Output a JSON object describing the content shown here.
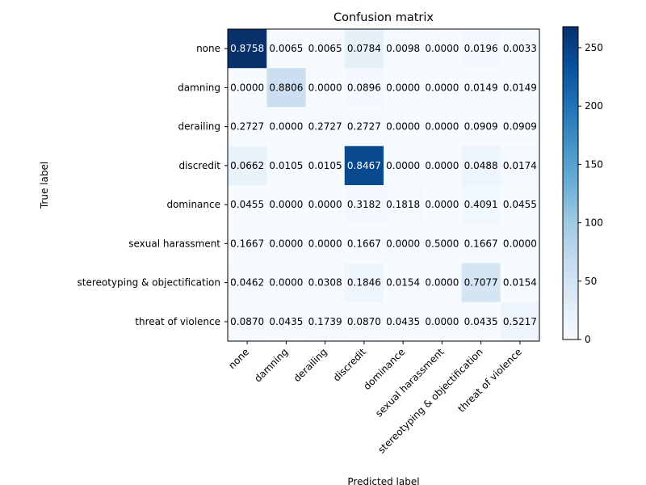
{
  "chart_data": {
    "type": "heatmap",
    "title": "Confusion matrix",
    "xlabel": "Predicted label",
    "ylabel": "True label",
    "labels": [
      "none",
      "damning",
      "derailing",
      "discredit",
      "dominance",
      "sexual harassment",
      "stereotyping & objectification",
      "threat of violence"
    ],
    "display_values": [
      [
        "0.8758",
        "0.0065",
        "0.0065",
        "0.0784",
        "0.0098",
        "0.0000",
        "0.0196",
        "0.0033"
      ],
      [
        "0.0000",
        "0.8806",
        "0.0000",
        "0.0896",
        "0.0000",
        "0.0000",
        "0.0149",
        "0.0149"
      ],
      [
        "0.2727",
        "0.0000",
        "0.2727",
        "0.2727",
        "0.0000",
        "0.0000",
        "0.0909",
        "0.0909"
      ],
      [
        "0.0662",
        "0.0105",
        "0.0105",
        "0.8467",
        "0.0000",
        "0.0000",
        "0.0488",
        "0.0174"
      ],
      [
        "0.0455",
        "0.0000",
        "0.0000",
        "0.3182",
        "0.1818",
        "0.0000",
        "0.4091",
        "0.0455"
      ],
      [
        "0.1667",
        "0.0000",
        "0.0000",
        "0.1667",
        "0.0000",
        "0.5000",
        "0.1667",
        "0.0000"
      ],
      [
        "0.0462",
        "0.0000",
        "0.0308",
        "0.1846",
        "0.0154",
        "0.0000",
        "0.7077",
        "0.0154"
      ],
      [
        "0.0870",
        "0.0435",
        "0.1739",
        "0.0870",
        "0.0435",
        "0.0000",
        "0.0435",
        "0.5217"
      ]
    ],
    "counts": [
      [
        268,
        2,
        2,
        24,
        3,
        0,
        6,
        1
      ],
      [
        0,
        59,
        0,
        6,
        0,
        0,
        1,
        1
      ],
      [
        3,
        0,
        3,
        3,
        0,
        0,
        1,
        1
      ],
      [
        19,
        3,
        3,
        243,
        0,
        0,
        14,
        5
      ],
      [
        1,
        0,
        0,
        7,
        4,
        0,
        9,
        1
      ],
      [
        1,
        0,
        0,
        1,
        0,
        3,
        1,
        0
      ],
      [
        3,
        0,
        2,
        12,
        1,
        0,
        46,
        1
      ],
      [
        2,
        1,
        4,
        2,
        1,
        0,
        1,
        12
      ]
    ],
    "colorbar": {
      "min": 0,
      "max": 268,
      "ticks": [
        0,
        50,
        100,
        150,
        200,
        250
      ]
    },
    "colormap": "Blues",
    "text_threshold": 134
  }
}
